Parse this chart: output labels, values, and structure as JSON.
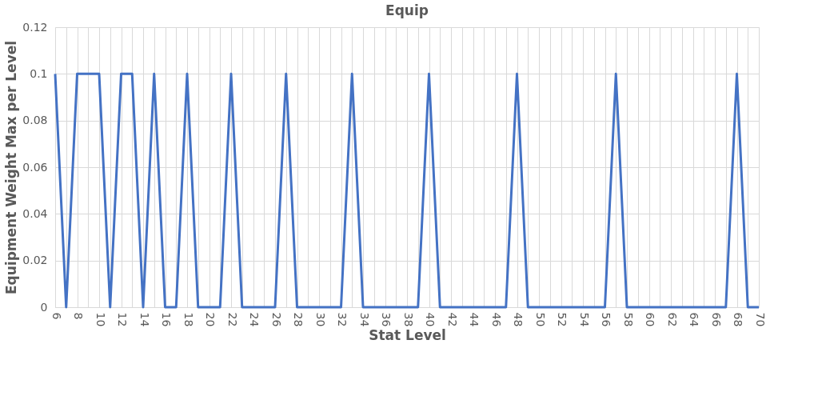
{
  "chart_data": {
    "type": "line",
    "title": "Equip",
    "xlabel": "Stat Level",
    "ylabel": "Equipment Weight Max per Level",
    "categories": [
      "6",
      null,
      "8",
      null,
      "10",
      null,
      "12",
      null,
      "14",
      null,
      "16",
      null,
      "18",
      null,
      "20",
      null,
      "22",
      null,
      "24",
      null,
      "26",
      null,
      "28",
      null,
      "30",
      null,
      "32",
      null,
      "34",
      null,
      "36",
      null,
      "38",
      null,
      "40",
      null,
      "42",
      null,
      "44",
      null,
      "46",
      null,
      "48",
      null,
      "50",
      null,
      "52",
      null,
      "54",
      null,
      "56",
      null,
      "58",
      null,
      "60",
      null,
      "62",
      null,
      "64",
      null,
      "66",
      null,
      "68",
      null,
      "70"
    ],
    "series": [
      {
        "color": "#4472c4",
        "values": [
          0.1,
          0,
          0.1,
          0.1,
          0.1,
          0,
          0.1,
          0.1,
          0,
          0.1,
          0,
          0,
          0.1,
          0,
          0,
          0,
          0.1,
          0,
          0,
          0,
          0,
          0.1,
          0,
          0,
          0,
          0,
          0,
          0.1,
          0,
          0,
          0,
          0,
          0,
          0,
          0.1,
          0,
          0,
          0,
          0,
          0,
          0,
          0,
          0.1,
          0,
          0,
          0,
          0,
          0,
          0,
          0,
          0,
          0.1,
          0,
          0,
          0,
          0,
          0,
          0,
          0,
          0,
          0,
          0,
          0.1,
          0,
          0
        ]
      }
    ],
    "ylim": [
      0,
      0.12
    ],
    "yticks": [
      0,
      0.02,
      0.04,
      0.06,
      0.08,
      0.1,
      0.12
    ],
    "grid": true,
    "marker": "none",
    "line_style": "solid"
  }
}
